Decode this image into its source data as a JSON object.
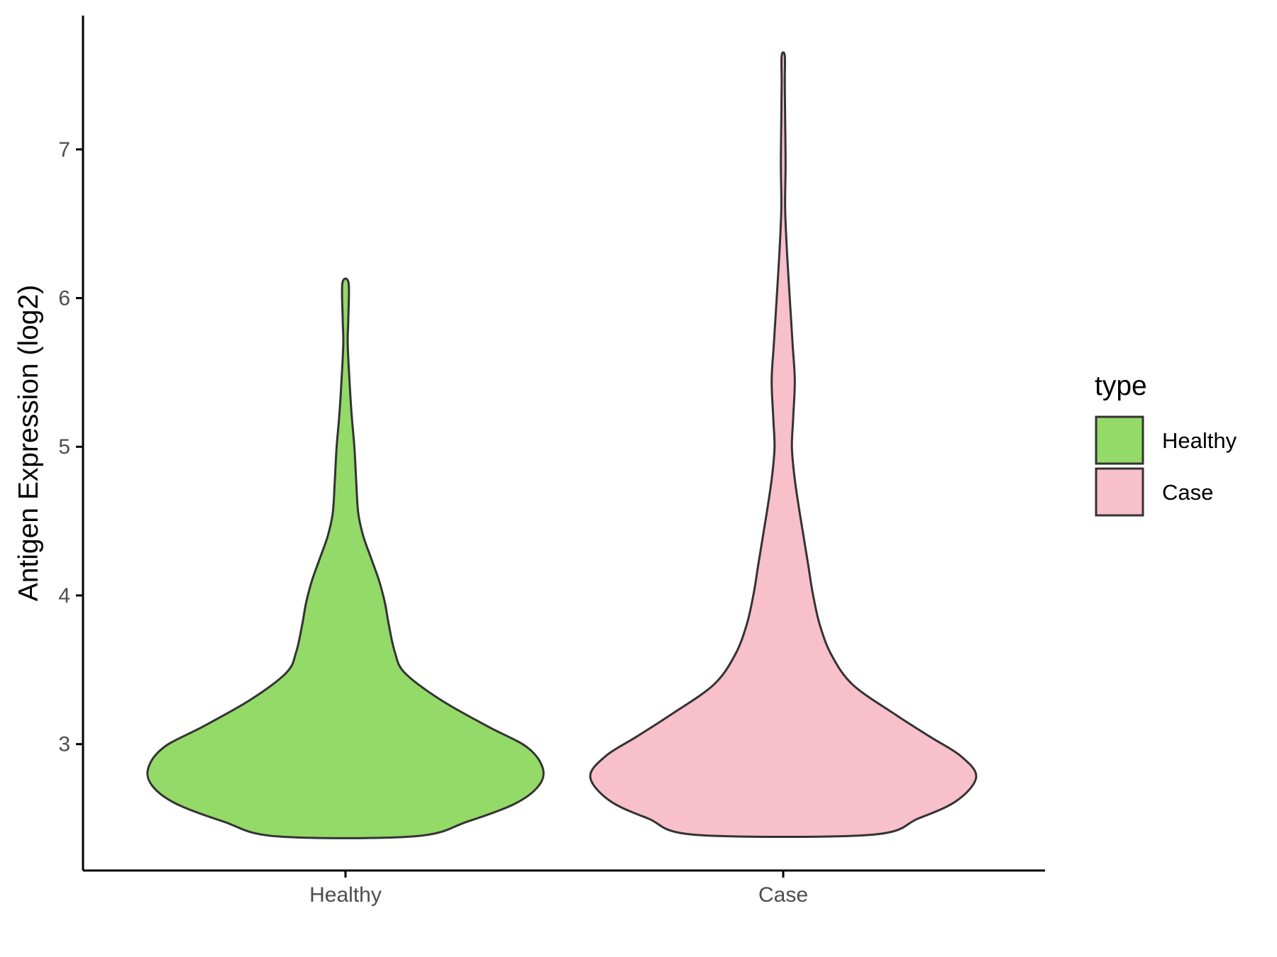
{
  "chart_data": {
    "type": "violin",
    "title": "",
    "xlabel": "",
    "ylabel": "Antigen Expression (log2)",
    "categories": [
      "Healthy",
      "Case"
    ],
    "ylim": [
      2.15,
      7.9
    ],
    "yticks": [
      3,
      4,
      5,
      6,
      7
    ],
    "grid": false,
    "legend": {
      "title": "type",
      "position": "right",
      "entries": [
        {
          "label": "Healthy",
          "color": "#93DA69"
        },
        {
          "label": "Case",
          "color": "#F8C0CB"
        }
      ]
    },
    "series": [
      {
        "name": "Healthy",
        "color": "#93DA69",
        "outline": "#333333",
        "density": [
          {
            "y": 2.38,
            "w": 0.35
          },
          {
            "y": 2.48,
            "w": 0.62
          },
          {
            "y": 2.6,
            "w": 0.86
          },
          {
            "y": 2.72,
            "w": 0.98
          },
          {
            "y": 2.84,
            "w": 1.0
          },
          {
            "y": 2.98,
            "w": 0.92
          },
          {
            "y": 3.12,
            "w": 0.72
          },
          {
            "y": 3.3,
            "w": 0.48
          },
          {
            "y": 3.48,
            "w": 0.3
          },
          {
            "y": 3.62,
            "w": 0.25
          },
          {
            "y": 3.8,
            "w": 0.22
          },
          {
            "y": 3.95,
            "w": 0.2
          },
          {
            "y": 4.1,
            "w": 0.17
          },
          {
            "y": 4.25,
            "w": 0.13
          },
          {
            "y": 4.4,
            "w": 0.09
          },
          {
            "y": 4.55,
            "w": 0.065
          },
          {
            "y": 4.75,
            "w": 0.055
          },
          {
            "y": 5.0,
            "w": 0.045
          },
          {
            "y": 5.2,
            "w": 0.032
          },
          {
            "y": 5.45,
            "w": 0.02
          },
          {
            "y": 5.7,
            "w": 0.011
          },
          {
            "y": 5.85,
            "w": 0.014
          },
          {
            "y": 6.1,
            "w": 0.016
          }
        ]
      },
      {
        "name": "Case",
        "color": "#F8C0CB",
        "outline": "#333333",
        "density": [
          {
            "y": 2.39,
            "w": 0.45
          },
          {
            "y": 2.5,
            "w": 0.7
          },
          {
            "y": 2.62,
            "w": 0.9
          },
          {
            "y": 2.78,
            "w": 1.0
          },
          {
            "y": 2.92,
            "w": 0.92
          },
          {
            "y": 3.05,
            "w": 0.76
          },
          {
            "y": 3.2,
            "w": 0.58
          },
          {
            "y": 3.4,
            "w": 0.36
          },
          {
            "y": 3.6,
            "w": 0.25
          },
          {
            "y": 3.8,
            "w": 0.19
          },
          {
            "y": 4.0,
            "w": 0.155
          },
          {
            "y": 4.2,
            "w": 0.13
          },
          {
            "y": 4.4,
            "w": 0.105
          },
          {
            "y": 4.6,
            "w": 0.08
          },
          {
            "y": 4.8,
            "w": 0.058
          },
          {
            "y": 5.0,
            "w": 0.045
          },
          {
            "y": 5.2,
            "w": 0.052
          },
          {
            "y": 5.45,
            "w": 0.06
          },
          {
            "y": 5.7,
            "w": 0.048
          },
          {
            "y": 6.0,
            "w": 0.034
          },
          {
            "y": 6.3,
            "w": 0.02
          },
          {
            "y": 6.6,
            "w": 0.01
          },
          {
            "y": 6.9,
            "w": 0.012
          },
          {
            "y": 7.2,
            "w": 0.01
          },
          {
            "y": 7.45,
            "w": 0.008
          },
          {
            "y": 7.63,
            "w": 0.008
          }
        ]
      }
    ]
  }
}
